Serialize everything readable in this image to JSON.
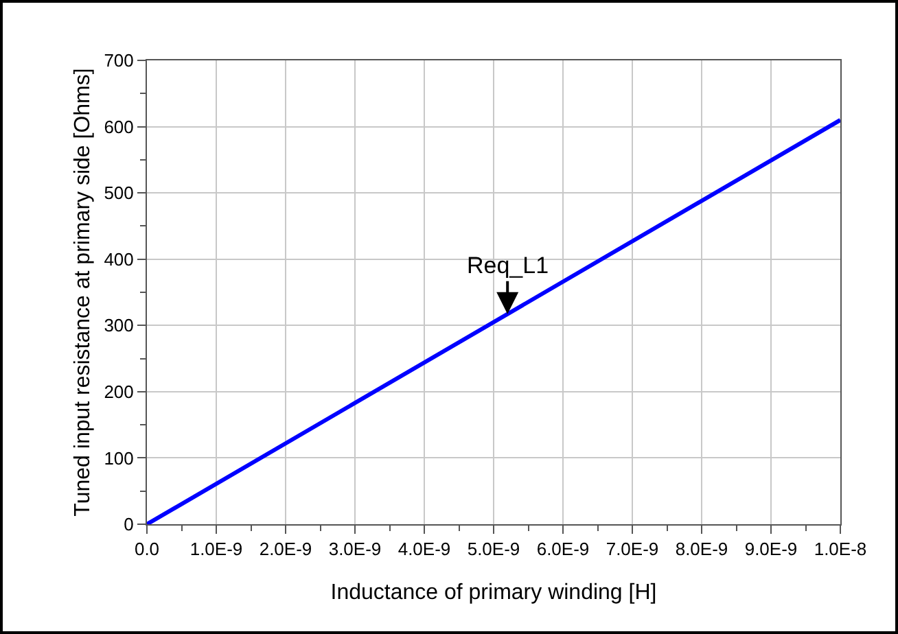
{
  "chart_data": {
    "type": "line",
    "xlabel": "Inductance of primary winding [H]",
    "ylabel": "Tuned input resistance at primary side [Ohms]",
    "x": [
      0,
      1e-08
    ],
    "series": [
      {
        "color": "#0000ff",
        "values": [
          0,
          610
        ]
      }
    ],
    "xlim": [
      0,
      1e-08
    ],
    "xticks": [
      {
        "value": 0,
        "label": "0.0"
      },
      {
        "value": 1e-09,
        "label": "1.0E-9"
      },
      {
        "value": 2e-09,
        "label": "2.0E-9"
      },
      {
        "value": 3e-09,
        "label": "3.0E-9"
      },
      {
        "value": 4e-09,
        "label": "4.0E-9"
      },
      {
        "value": 5e-09,
        "label": "5.0E-9"
      },
      {
        "value": 6e-09,
        "label": "6.0E-9"
      },
      {
        "value": 7e-09,
        "label": "7.0E-9"
      },
      {
        "value": 8e-09,
        "label": "8.0E-9"
      },
      {
        "value": 9e-09,
        "label": "9.0E-9"
      },
      {
        "value": 1e-08,
        "label": "1.0E-8"
      }
    ],
    "ylim": [
      0,
      700
    ],
    "yticks": [
      0,
      100,
      200,
      300,
      400,
      500,
      600,
      700
    ],
    "annotations": [
      {
        "text": "Req_L1",
        "x": 5.2e-09,
        "y": 317
      }
    ],
    "grid": true,
    "marker": "none",
    "line_style": "solid"
  }
}
